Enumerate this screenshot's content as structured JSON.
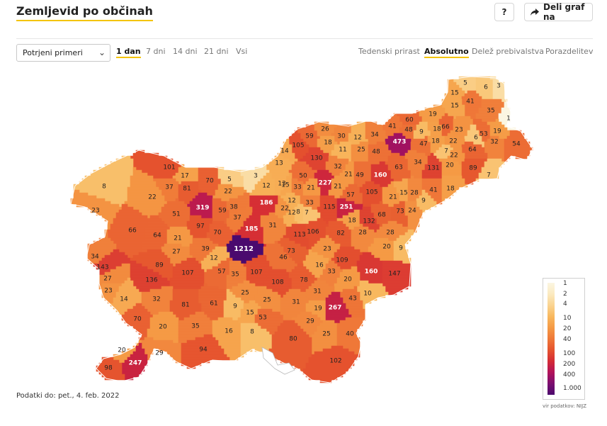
{
  "header": {
    "title": "Zemljevid po občinah",
    "help_label": "?",
    "share_label": "Deli graf na"
  },
  "controls": {
    "select_value": "Potrjeni primeri",
    "periods": [
      "1 dan",
      "7 dni",
      "14 dni",
      "21 dni",
      "Vsi"
    ],
    "active_period": "1 dan",
    "modes": [
      "Tedenski prirast",
      "Absolutno",
      "Delež prebivalstva",
      "Porazdelitev"
    ],
    "active_mode": "Absolutno"
  },
  "legend": {
    "labels": [
      "1",
      "2",
      "4",
      "10",
      "20",
      "40",
      "100",
      "200",
      "400",
      "1.000"
    ],
    "colors": [
      "#fbf6e2",
      "#fbeac0",
      "#fad491",
      "#f8b85e",
      "#f59a45",
      "#ef7838",
      "#e5532e",
      "#d42b35",
      "#b1125a",
      "#7b0e6f",
      "#4b0a6e"
    ]
  },
  "footer": {
    "updated": "Podatki do: pet., 4. feb. 2022",
    "source": "vir podatkov: NIJZ"
  },
  "map_values": [
    {
      "v": 5
    },
    {
      "v": 6
    },
    {
      "v": 3
    },
    {
      "v": 15
    },
    {
      "v": 41
    },
    {
      "v": 15
    },
    {
      "v": 35
    },
    {
      "v": 1
    },
    {
      "v": 60
    },
    {
      "v": 19
    },
    {
      "v": 41
    },
    {
      "v": 48
    },
    {
      "v": 9
    },
    {
      "v": 18
    },
    {
      "v": 66
    },
    {
      "v": 23
    },
    {
      "v": 53
    },
    {
      "v": 19
    },
    {
      "v": 6
    },
    {
      "v": 32
    },
    {
      "v": 54
    },
    {
      "v": 59
    },
    {
      "v": 26
    },
    {
      "v": 30
    },
    {
      "v": 12
    },
    {
      "v": 34
    },
    {
      "v": 473
    },
    {
      "v": 47
    },
    {
      "v": 18
    },
    {
      "v": 7
    },
    {
      "v": 22
    },
    {
      "v": 64
    },
    {
      "v": 105
    },
    {
      "v": 18
    },
    {
      "v": 11
    },
    {
      "v": 25
    },
    {
      "v": 48
    },
    {
      "v": 14
    },
    {
      "v": 130
    },
    {
      "v": 32
    },
    {
      "v": 21
    },
    {
      "v": 49
    },
    {
      "v": 160
    },
    {
      "v": 63
    },
    {
      "v": 34
    },
    {
      "v": 131
    },
    {
      "v": 20
    },
    {
      "v": 22
    },
    {
      "v": 89
    },
    {
      "v": 7
    },
    {
      "v": 13
    },
    {
      "v": 50
    },
    {
      "v": 227
    },
    {
      "v": 21
    },
    {
      "v": 15
    },
    {
      "v": 101
    },
    {
      "v": 17
    },
    {
      "v": 70
    },
    {
      "v": 5
    },
    {
      "v": 3
    },
    {
      "v": 33
    },
    {
      "v": 21
    },
    {
      "v": 57
    },
    {
      "v": 105
    },
    {
      "v": 21
    },
    {
      "v": 15
    },
    {
      "v": 28
    },
    {
      "v": 41
    },
    {
      "v": 18
    },
    {
      "v": 8
    },
    {
      "v": 37
    },
    {
      "v": 81
    },
    {
      "v": 22
    },
    {
      "v": 12
    },
    {
      "v": 13
    },
    {
      "v": 12
    },
    {
      "v": 33
    },
    {
      "v": 22
    },
    {
      "v": 115
    },
    {
      "v": 251
    },
    {
      "v": 9
    },
    {
      "v": 73
    },
    {
      "v": 24
    },
    {
      "v": 22
    },
    {
      "v": 23
    },
    {
      "v": 319
    },
    {
      "v": 59
    },
    {
      "v": 186
    },
    {
      "v": 38
    },
    {
      "v": 12
    },
    {
      "v": 8
    },
    {
      "v": 7
    },
    {
      "v": 18
    },
    {
      "v": 132
    },
    {
      "v": 68
    },
    {
      "v": 51
    },
    {
      "v": 37
    },
    {
      "v": 66
    },
    {
      "v": 97
    },
    {
      "v": 70
    },
    {
      "v": 185
    },
    {
      "v": 31
    },
    {
      "v": 113
    },
    {
      "v": 106
    },
    {
      "v": 82
    },
    {
      "v": 28
    },
    {
      "v": 28
    },
    {
      "v": 64
    },
    {
      "v": 21
    },
    {
      "v": 1212
    },
    {
      "v": 20
    },
    {
      "v": 9
    },
    {
      "v": 27
    },
    {
      "v": 39
    },
    {
      "v": 34
    },
    {
      "v": 12
    },
    {
      "v": 73
    },
    {
      "v": 23
    },
    {
      "v": 46
    },
    {
      "v": 109
    },
    {
      "v": 143
    },
    {
      "v": 89
    },
    {
      "v": 57
    },
    {
      "v": 35
    },
    {
      "v": 107
    },
    {
      "v": 16
    },
    {
      "v": 160
    },
    {
      "v": 147
    },
    {
      "v": 27
    },
    {
      "v": 136
    },
    {
      "v": 107
    },
    {
      "v": 108
    },
    {
      "v": 78
    },
    {
      "v": 33
    },
    {
      "v": 20
    },
    {
      "v": 23
    },
    {
      "v": 25
    },
    {
      "v": 31
    },
    {
      "v": 10
    },
    {
      "v": 14
    },
    {
      "v": 32
    },
    {
      "v": 61
    },
    {
      "v": 25
    },
    {
      "v": 43
    },
    {
      "v": 81
    },
    {
      "v": 9
    },
    {
      "v": 15
    },
    {
      "v": 53
    },
    {
      "v": 31
    },
    {
      "v": 19
    },
    {
      "v": 267
    },
    {
      "v": 70
    },
    {
      "v": 20
    },
    {
      "v": 35
    },
    {
      "v": 16
    },
    {
      "v": 8
    },
    {
      "v": 29
    },
    {
      "v": 25
    },
    {
      "v": 40
    },
    {
      "v": 80
    },
    {
      "v": 20
    },
    {
      "v": 29
    },
    {
      "v": 94
    },
    {
      "v": 247
    },
    {
      "v": 102
    },
    {
      "v": 98
    }
  ]
}
